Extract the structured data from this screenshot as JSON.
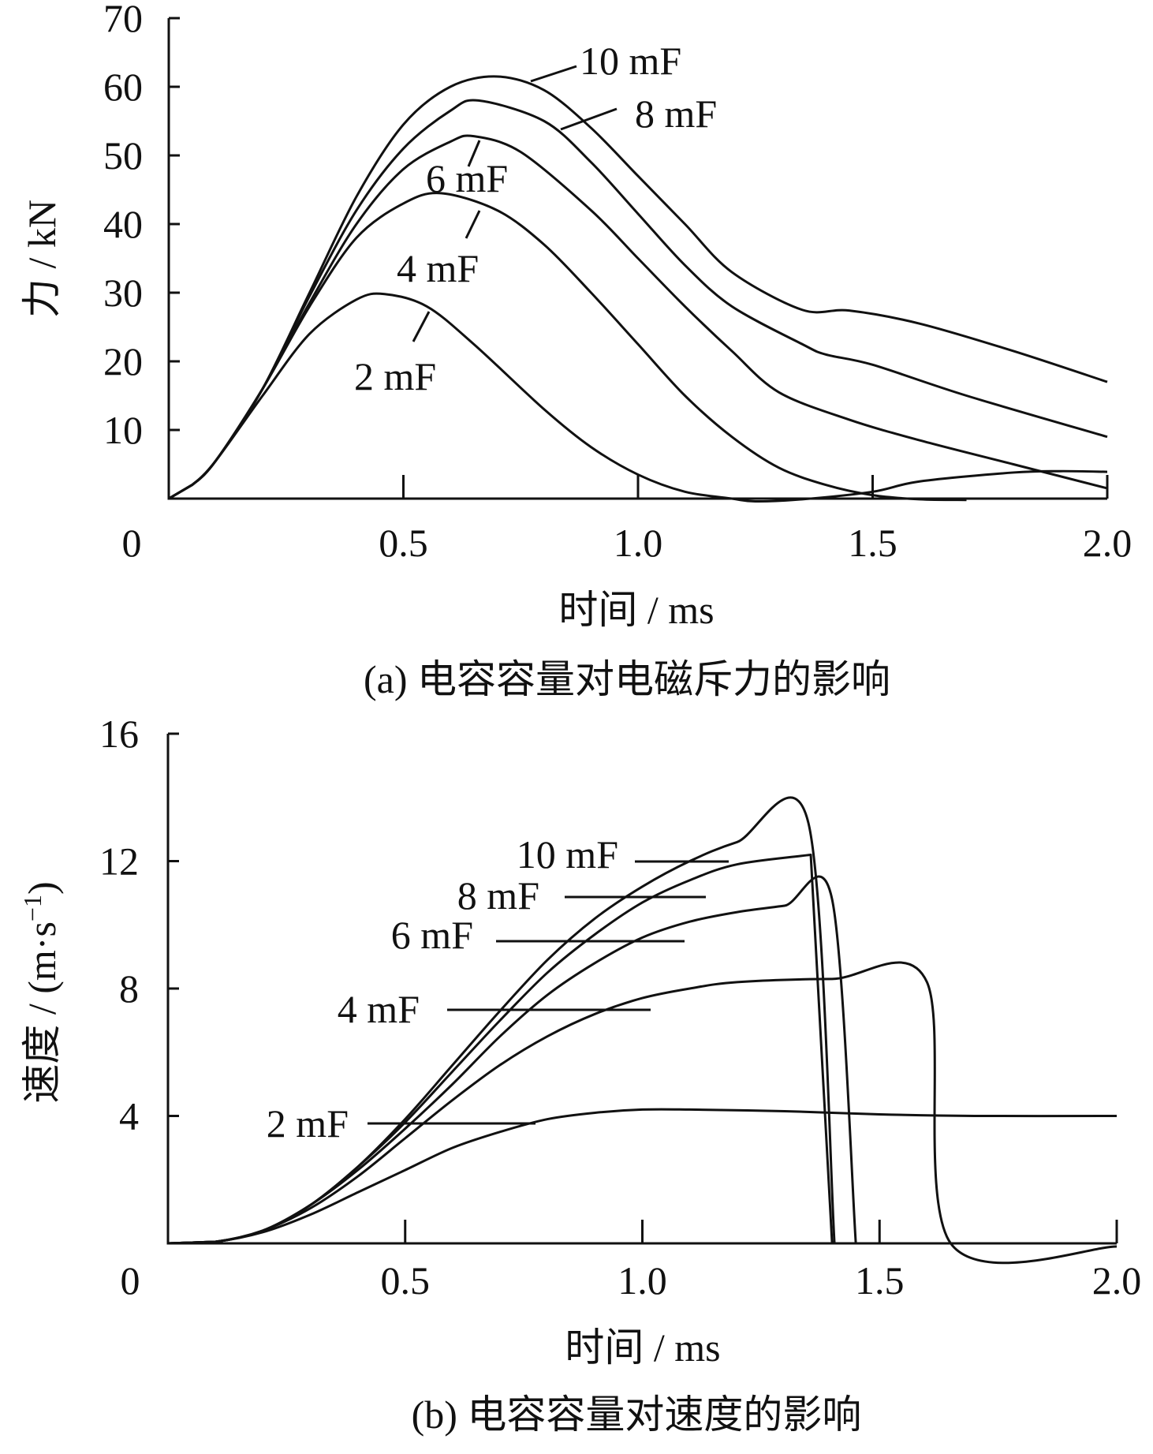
{
  "chart_data": [
    {
      "type": "line",
      "title": "",
      "caption": "(a)  电容容量对电磁斥力的影响",
      "xlabel": "时间 / ms",
      "ylabel": "力 / kN",
      "xlim": [
        0,
        2.0
      ],
      "ylim": [
        0,
        70
      ],
      "xticks": [
        0.5,
        1.0,
        1.5,
        2.0
      ],
      "xtick_labels": [
        "0.5",
        "1.0",
        "1.5",
        "2.0"
      ],
      "yticks": [
        10,
        20,
        30,
        40,
        50,
        60,
        70
      ],
      "ytick_labels": [
        "10",
        "20",
        "30",
        "40",
        "50",
        "60",
        "70"
      ],
      "origin_label": "0",
      "grid": false,
      "series": [
        {
          "name": "10 mF",
          "x": [
            0,
            0.05,
            0.1,
            0.2,
            0.3,
            0.4,
            0.5,
            0.6,
            0.7,
            0.8,
            0.9,
            1.0,
            1.1,
            1.2,
            1.35,
            1.45,
            1.6,
            1.8,
            2.0
          ],
          "y": [
            0,
            2,
            5.5,
            16,
            30,
            44,
            54.5,
            60,
            61.5,
            59.5,
            54,
            47,
            40,
            33,
            27.5,
            27.4,
            25.5,
            21.5,
            17
          ]
        },
        {
          "name": "8 mF",
          "x": [
            0,
            0.05,
            0.1,
            0.2,
            0.3,
            0.4,
            0.5,
            0.6,
            0.66,
            0.8,
            0.9,
            1.0,
            1.1,
            1.2,
            1.35,
            1.4,
            1.5,
            1.7,
            2.0
          ],
          "y": [
            0,
            2,
            5.5,
            16,
            29.5,
            42,
            51,
            56.5,
            58,
            55,
            49,
            41.5,
            34,
            28,
            22.5,
            21,
            19.5,
            15,
            9
          ]
        },
        {
          "name": "6 mF",
          "x": [
            0,
            0.05,
            0.1,
            0.2,
            0.3,
            0.4,
            0.5,
            0.6,
            0.65,
            0.75,
            0.9,
            1.0,
            1.1,
            1.2,
            1.3,
            1.45,
            1.6,
            1.8,
            2.0
          ],
          "y": [
            0,
            2,
            5.5,
            16,
            28.5,
            40,
            48,
            52,
            52.8,
            50.5,
            42,
            35,
            28,
            21.5,
            15.5,
            11.5,
            8.5,
            5,
            1.5
          ]
        },
        {
          "name": "4 mF",
          "x": [
            0,
            0.05,
            0.1,
            0.2,
            0.3,
            0.4,
            0.5,
            0.58,
            0.7,
            0.8,
            0.9,
            1.0,
            1.1,
            1.2,
            1.3,
            1.4,
            1.5,
            1.6,
            1.7
          ],
          "y": [
            0,
            2,
            5.5,
            16,
            28,
            38,
            43,
            44.5,
            42,
            37,
            30,
            22.5,
            15,
            9,
            4.5,
            2,
            0.5,
            -0.1,
            -0.2
          ]
        },
        {
          "name": "2 mF",
          "x": [
            0,
            0.05,
            0.1,
            0.2,
            0.3,
            0.4,
            0.46,
            0.55,
            0.65,
            0.8,
            0.9,
            1.0,
            1.1,
            1.2,
            1.25,
            1.35,
            1.5,
            1.6,
            1.8,
            1.9,
            2.0
          ],
          "y": [
            0,
            2,
            5.5,
            15,
            24,
            29,
            29.8,
            28,
            22.5,
            13,
            7.5,
            3.5,
            1,
            0,
            -0.4,
            -0.1,
            1,
            2.5,
            3.8,
            4,
            3.9
          ]
        }
      ]
    },
    {
      "type": "line",
      "title": "",
      "caption": "(b)  电容容量对速度的影响",
      "xlabel": "时间 / ms",
      "ylabel": "速度 / (m·s",
      "ylabel_sup": "−1",
      "ylabel_end": ")",
      "xlim": [
        0,
        2.0
      ],
      "ylim": [
        0,
        16
      ],
      "xticks": [
        0.5,
        1.0,
        1.5,
        2.0
      ],
      "xtick_labels": [
        "0.5",
        "1.0",
        "1.5",
        "2.0"
      ],
      "yticks": [
        4,
        8,
        12,
        16
      ],
      "ytick_labels": [
        "4",
        "8",
        "12",
        "16"
      ],
      "origin_label": "0",
      "grid": false,
      "series": [
        {
          "name": "10 mF",
          "x": [
            0,
            0.1,
            0.2,
            0.3,
            0.4,
            0.5,
            0.6,
            0.7,
            0.8,
            0.9,
            1.0,
            1.1,
            1.2,
            1.35,
            1.405
          ],
          "y": [
            0,
            0.05,
            0.4,
            1.2,
            2.4,
            3.9,
            5.6,
            7.3,
            8.9,
            10.2,
            11.2,
            12,
            12.6,
            13.2,
            0
          ]
        },
        {
          "name": "8 mF",
          "x": [
            0,
            0.1,
            0.2,
            0.3,
            0.4,
            0.5,
            0.6,
            0.7,
            0.8,
            0.9,
            1.0,
            1.1,
            1.2,
            1.355,
            1.4
          ],
          "y": [
            0,
            0.05,
            0.4,
            1.2,
            2.4,
            3.8,
            5.4,
            7.0,
            8.5,
            9.7,
            10.7,
            11.4,
            11.9,
            12.2,
            0
          ]
        },
        {
          "name": "6 mF",
          "x": [
            0,
            0.1,
            0.2,
            0.3,
            0.4,
            0.5,
            0.6,
            0.7,
            0.8,
            0.9,
            1.0,
            1.1,
            1.2,
            1.3,
            1.4,
            1.45
          ],
          "y": [
            0,
            0.05,
            0.4,
            1.2,
            2.3,
            3.6,
            5.0,
            6.5,
            7.8,
            8.8,
            9.6,
            10.1,
            10.4,
            10.6,
            10.8,
            0
          ]
        },
        {
          "name": "4 mF",
          "x": [
            0,
            0.1,
            0.2,
            0.3,
            0.4,
            0.5,
            0.6,
            0.7,
            0.8,
            0.9,
            1.0,
            1.1,
            1.2,
            1.4,
            1.6,
            1.65,
            2.0
          ],
          "y": [
            0,
            0.05,
            0.4,
            1.1,
            2.1,
            3.3,
            4.5,
            5.6,
            6.5,
            7.2,
            7.7,
            8.0,
            8.2,
            8.3,
            8.2,
            0,
            -0.1
          ]
        },
        {
          "name": "2 mF",
          "x": [
            0,
            0.1,
            0.2,
            0.3,
            0.4,
            0.5,
            0.6,
            0.7,
            0.8,
            0.9,
            1.0,
            1.1,
            1.3,
            1.5,
            1.7,
            2.0
          ],
          "y": [
            0,
            0.05,
            0.35,
            0.9,
            1.6,
            2.3,
            3.0,
            3.5,
            3.9,
            4.1,
            4.2,
            4.2,
            4.15,
            4.05,
            4.0,
            4.0
          ]
        }
      ]
    }
  ]
}
